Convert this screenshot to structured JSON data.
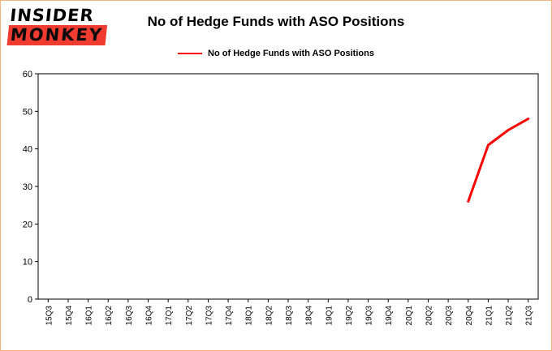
{
  "logo": {
    "line1": "INSIDER",
    "line2": "MONKEY"
  },
  "title": "No of Hedge Funds with ASO Positions",
  "legend": {
    "label": "No of Hedge Funds with ASO Positions",
    "color": "#ff0000"
  },
  "colors": {
    "accent_red": "#ff0000",
    "logo_red": "#f03b30",
    "border": "#f7b07c",
    "axis": "#000000"
  },
  "chart_data": {
    "type": "line",
    "title": "No of Hedge Funds with ASO Positions",
    "xlabel": "",
    "ylabel": "",
    "categories": [
      "15Q3",
      "15Q4",
      "16Q1",
      "16Q2",
      "16Q3",
      "16Q4",
      "17Q1",
      "17Q2",
      "17Q3",
      "17Q4",
      "18Q1",
      "18Q2",
      "18Q3",
      "18Q4",
      "19Q1",
      "19Q2",
      "19Q3",
      "19Q4",
      "20Q1",
      "20Q2",
      "20Q3",
      "20Q4",
      "21Q1",
      "21Q2",
      "21Q3"
    ],
    "series": [
      {
        "name": "No of Hedge Funds with ASO Positions",
        "color": "#ff0000",
        "values": [
          null,
          null,
          null,
          null,
          null,
          null,
          null,
          null,
          null,
          null,
          null,
          null,
          null,
          null,
          null,
          null,
          null,
          null,
          null,
          null,
          null,
          26,
          41,
          45,
          48
        ]
      }
    ],
    "ylim": [
      0,
      60
    ],
    "yticks": [
      0,
      10,
      20,
      30,
      40,
      50,
      60
    ],
    "grid": false,
    "legend_position": "top-center",
    "line_width": 3
  }
}
